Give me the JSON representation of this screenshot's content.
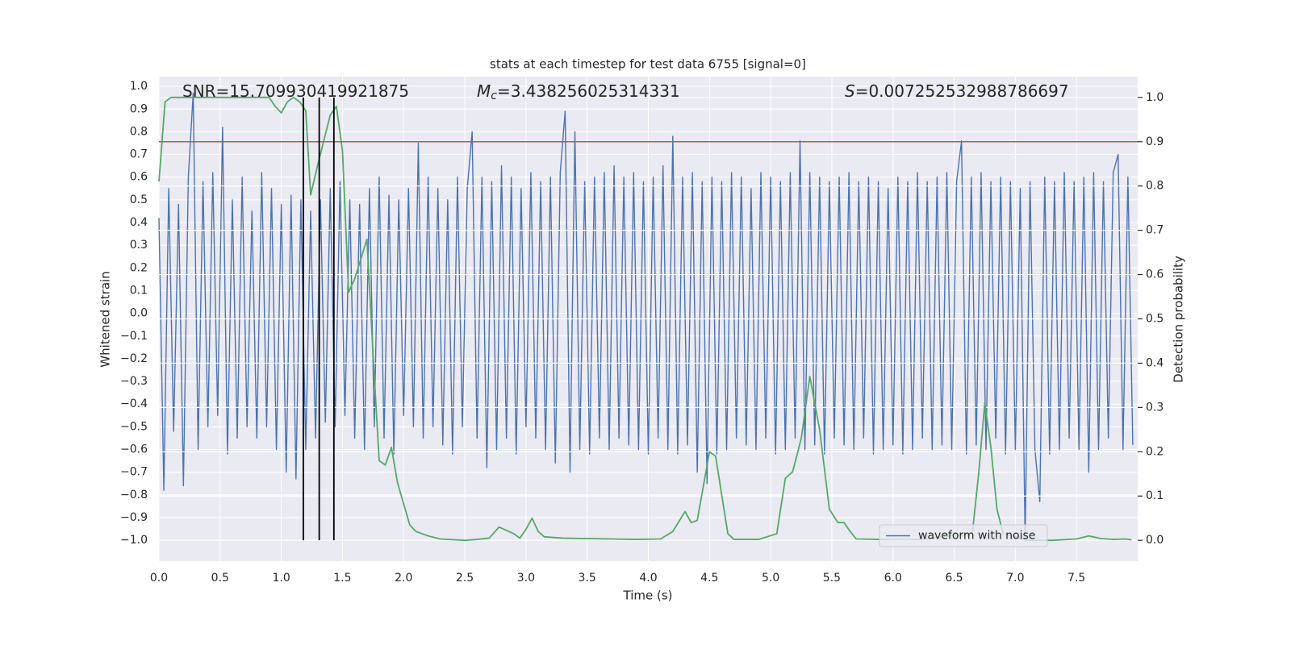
{
  "chart_data": {
    "type": "line",
    "title": "stats at each timestep for test data 6755 [signal=0]",
    "xlabel": "Time (s)",
    "ylabel": "Whitened strain",
    "y2label": "Detection probability",
    "annotations": [
      {
        "text": "SNR=15.709930419921875"
      },
      {
        "symbol": "M",
        "subscript": "c",
        "text": "=3.438256025314331"
      },
      {
        "symbol": "S",
        "text": "=0.007252532988786697"
      }
    ],
    "xlim": [
      0,
      8.0
    ],
    "ylim": [
      -1.092,
      1.043
    ],
    "y2lim": [
      -0.047,
      1.047
    ],
    "xticks": [
      {
        "value": 0,
        "label": "0.0"
      },
      0.5,
      {
        "value": 1,
        "label": "1.0"
      },
      1.5,
      {
        "value": 2,
        "label": "2.0"
      },
      2.5,
      {
        "value": 3,
        "label": "3.0"
      },
      3.5,
      {
        "value": 4,
        "label": "4.0"
      },
      4.5,
      {
        "value": 5,
        "label": "5.0"
      },
      5.5,
      {
        "value": 6,
        "label": "6.0"
      },
      6.5,
      {
        "value": 7,
        "label": "7.0"
      },
      7.5
    ],
    "yticks": [
      {
        "value": -1,
        "label": "−1.0"
      },
      {
        "value": -0.9,
        "label": "−0.9"
      },
      {
        "value": -0.8,
        "label": "−0.8"
      },
      {
        "value": -0.7,
        "label": "−0.7"
      },
      {
        "value": -0.6,
        "label": "−0.6"
      },
      {
        "value": -0.5,
        "label": "−0.5"
      },
      {
        "value": -0.4,
        "label": "−0.4"
      },
      {
        "value": -0.3,
        "label": "−0.3"
      },
      {
        "value": -0.2,
        "label": "−0.2"
      },
      {
        "value": -0.1,
        "label": "−0.1"
      },
      {
        "value": 0,
        "label": "0.0"
      },
      0.1,
      0.2,
      0.3,
      0.4,
      0.5,
      0.6,
      0.7,
      0.8,
      0.9,
      {
        "value": 1,
        "label": "1.0"
      }
    ],
    "y2ticks": [
      {
        "value": 0,
        "label": "0.0"
      },
      0.1,
      0.2,
      0.3,
      0.4,
      0.5,
      0.6,
      0.7,
      0.8,
      0.9,
      {
        "value": 1,
        "label": "1.0"
      }
    ],
    "grid": true,
    "legend": "lower right",
    "series": [
      {
        "name": "waveform with noise",
        "color": "#4c72b0",
        "x": [
          0,
          0.04,
          0.08,
          0.12,
          0.16,
          0.2,
          0.24,
          0.28,
          0.32,
          0.36,
          0.4,
          0.44,
          0.48,
          0.52,
          0.56,
          0.6,
          0.64,
          0.68,
          0.72,
          0.76,
          0.8,
          0.84,
          0.88,
          0.92,
          0.96,
          1.0,
          1.04,
          1.08,
          1.12,
          1.16,
          1.2,
          1.24,
          1.28,
          1.32,
          1.36,
          1.4,
          1.44,
          1.48,
          1.52,
          1.56,
          1.6,
          1.64,
          1.68,
          1.72,
          1.76,
          1.8,
          1.84,
          1.88,
          1.92,
          1.96,
          2.0,
          2.04,
          2.08,
          2.12,
          2.16,
          2.2,
          2.24,
          2.28,
          2.32,
          2.36,
          2.4,
          2.44,
          2.48,
          2.52,
          2.56,
          2.6,
          2.64,
          2.68,
          2.72,
          2.76,
          2.8,
          2.84,
          2.88,
          2.92,
          2.96,
          3.0,
          3.04,
          3.08,
          3.12,
          3.16,
          3.2,
          3.24,
          3.28,
          3.32,
          3.36,
          3.4,
          3.44,
          3.48,
          3.52,
          3.56,
          3.6,
          3.64,
          3.68,
          3.72,
          3.76,
          3.8,
          3.84,
          3.88,
          3.92,
          3.96,
          4.0,
          4.04,
          4.08,
          4.12,
          4.16,
          4.2,
          4.24,
          4.28,
          4.32,
          4.36,
          4.4,
          4.44,
          4.48,
          4.52,
          4.56,
          4.6,
          4.64,
          4.68,
          4.72,
          4.76,
          4.8,
          4.84,
          4.88,
          4.92,
          4.96,
          5.0,
          5.04,
          5.08,
          5.12,
          5.16,
          5.2,
          5.24,
          5.28,
          5.32,
          5.36,
          5.4,
          5.44,
          5.48,
          5.52,
          5.56,
          5.6,
          5.64,
          5.68,
          5.72,
          5.76,
          5.8,
          5.84,
          5.88,
          5.92,
          5.96,
          6.0,
          6.04,
          6.08,
          6.12,
          6.16,
          6.2,
          6.24,
          6.28,
          6.32,
          6.36,
          6.4,
          6.44,
          6.48,
          6.52,
          6.56,
          6.6,
          6.64,
          6.68,
          6.72,
          6.76,
          6.8,
          6.84,
          6.88,
          6.92,
          6.96,
          7.0,
          7.04,
          7.08,
          7.12,
          7.16,
          7.2,
          7.24,
          7.28,
          7.32,
          7.36,
          7.4,
          7.44,
          7.48,
          7.52,
          7.56,
          7.6,
          7.64,
          7.68,
          7.72,
          7.76,
          7.8,
          7.84,
          7.88,
          7.92,
          7.96
        ],
        "values": [
          0.42,
          -0.78,
          0.55,
          -0.52,
          0.48,
          -0.76,
          0.6,
          0.97,
          -0.6,
          0.58,
          -0.5,
          0.62,
          -0.45,
          0.82,
          -0.62,
          0.5,
          -0.55,
          0.6,
          -0.5,
          0.45,
          -0.55,
          0.62,
          -0.5,
          0.55,
          -0.6,
          0.48,
          -0.7,
          0.52,
          -0.73,
          0.5,
          -0.6,
          0.45,
          -0.55,
          0.5,
          -0.48,
          0.55,
          -0.5,
          0.58,
          -0.45,
          0.5,
          -0.55,
          0.48,
          -0.6,
          0.55,
          -0.5,
          0.6,
          -0.55,
          0.52,
          -0.62,
          0.5,
          -0.45,
          0.55,
          -0.5,
          0.75,
          -0.55,
          0.6,
          -0.5,
          0.55,
          -0.58,
          0.5,
          -0.62,
          0.6,
          -0.5,
          0.55,
          0.8,
          -0.55,
          0.6,
          -0.68,
          0.58,
          -0.6,
          0.65,
          -0.55,
          0.6,
          -0.62,
          0.55,
          -0.5,
          0.62,
          -0.55,
          0.58,
          -0.6,
          0.6,
          -0.66,
          0.62,
          0.89,
          -0.7,
          0.8,
          -0.6,
          0.58,
          -0.62,
          0.6,
          -0.55,
          0.62,
          -0.6,
          0.65,
          -0.55,
          0.6,
          -0.58,
          0.62,
          -0.6,
          0.58,
          -0.62,
          0.6,
          -0.55,
          0.65,
          -0.6,
          0.78,
          -0.62,
          0.6,
          -0.58,
          0.62,
          -0.7,
          0.58,
          -0.75,
          0.6,
          -0.62,
          0.58,
          -0.6,
          0.62,
          -0.55,
          0.6,
          -0.58,
          0.55,
          -0.6,
          0.62,
          -0.55,
          0.6,
          -0.62,
          0.58,
          -0.6,
          0.62,
          -0.55,
          0.76,
          -0.6,
          0.62,
          -0.58,
          0.6,
          -0.62,
          0.58,
          -0.55,
          0.6,
          -0.58,
          0.62,
          -0.6,
          0.58,
          -0.55,
          0.6,
          -0.62,
          0.58,
          -0.6,
          0.55,
          -0.58,
          0.6,
          -0.62,
          0.58,
          -0.6,
          0.62,
          -0.55,
          0.58,
          -0.6,
          0.6,
          -0.58,
          0.62,
          -0.6,
          0.58,
          0.76,
          -0.62,
          0.6,
          -0.58,
          0.62,
          -0.6,
          0.58,
          -0.55,
          0.6,
          -0.62,
          0.58,
          -0.6,
          0.55,
          -1.0,
          0.58,
          -0.6,
          -0.83,
          0.6,
          -0.62,
          0.58,
          -0.6,
          0.62,
          -0.55,
          0.58,
          -0.6,
          0.6,
          -0.7,
          0.62,
          -0.6,
          0.58,
          -0.55,
          0.62,
          0.7,
          -0.6,
          0.6,
          -0.58
        ]
      },
      {
        "color": "#55a868",
        "axis": "y2",
        "x": [
          0,
          0.05,
          0.1,
          0.2,
          0.9,
          0.95,
          1.0,
          1.05,
          1.1,
          1.15,
          1.2,
          1.24,
          1.3,
          1.4,
          1.45,
          1.5,
          1.55,
          1.6,
          1.7,
          1.75,
          1.8,
          1.85,
          1.9,
          1.95,
          2.05,
          2.1,
          2.2,
          2.3,
          2.5,
          2.6,
          2.7,
          2.78,
          2.9,
          2.95,
          3.0,
          3.05,
          3.1,
          3.15,
          3.3,
          3.5,
          3.9,
          4.1,
          4.2,
          4.3,
          4.35,
          4.4,
          4.5,
          4.55,
          4.65,
          4.7,
          4.9,
          5.05,
          5.12,
          5.18,
          5.25,
          5.32,
          5.4,
          5.48,
          5.55,
          5.6,
          5.65,
          5.7,
          5.9,
          6.1,
          6.15,
          6.2,
          6.3,
          6.45,
          6.5,
          6.6,
          6.65,
          6.7,
          6.75,
          6.8,
          6.85,
          6.9,
          7.0,
          7.1,
          7.3,
          7.5,
          7.6,
          7.7,
          7.8,
          7.9,
          7.95
        ],
        "values": [
          0.81,
          0.99,
          1.0,
          1.0,
          1.0,
          0.98,
          0.965,
          0.99,
          1.0,
          0.99,
          0.97,
          0.78,
          0.85,
          0.96,
          0.98,
          0.88,
          0.56,
          0.59,
          0.68,
          0.42,
          0.18,
          0.17,
          0.21,
          0.13,
          0.035,
          0.02,
          0.01,
          0.003,
          0.0,
          0.002,
          0.005,
          0.03,
          0.015,
          0.005,
          0.025,
          0.05,
          0.02,
          0.008,
          0.005,
          0.004,
          0.002,
          0.003,
          0.02,
          0.065,
          0.04,
          0.045,
          0.2,
          0.19,
          0.015,
          0.002,
          0.002,
          0.015,
          0.14,
          0.155,
          0.23,
          0.37,
          0.25,
          0.07,
          0.04,
          0.04,
          0.02,
          0.003,
          0.002,
          0.003,
          0.002,
          0.002,
          0.005,
          0.01,
          0.013,
          0.01,
          0.02,
          0.15,
          0.31,
          0.21,
          0.07,
          0.015,
          0.008,
          0.0,
          0.0,
          0.003,
          0.01,
          0.004,
          0.002,
          0.003,
          0.001
        ]
      }
    ],
    "hlines": [
      {
        "value": 0.9,
        "axis": "y2",
        "color": "#c44e52"
      }
    ],
    "vlines": {
      "values": [
        1.18,
        1.31,
        1.43
      ],
      "ymin": 0,
      "ymax": 1,
      "axis": "y2",
      "color": "#000000"
    }
  }
}
